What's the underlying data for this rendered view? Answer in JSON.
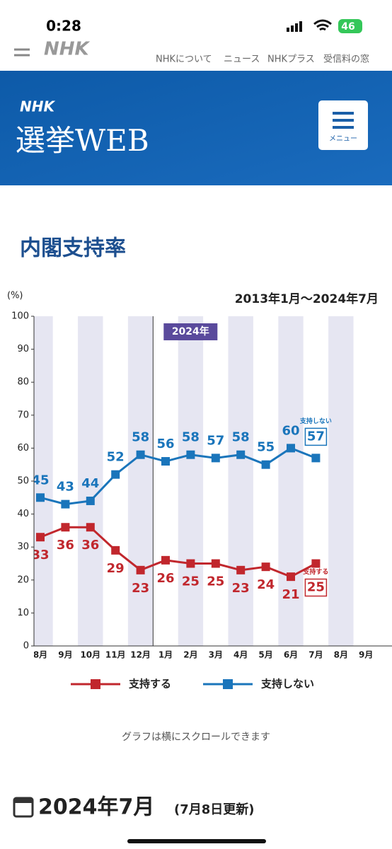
{
  "status_bar": {
    "time": "0:28",
    "battery": "46"
  },
  "nav": {
    "logo": "NHK",
    "links": [
      "NHKについて",
      "ニュース",
      "NHKプラス",
      "受信料の窓"
    ]
  },
  "header": {
    "brand": "NHK",
    "title": "選挙WEB",
    "menu": "メニュー"
  },
  "section": {
    "title": "内閣支持率"
  },
  "chart_data": {
    "type": "line",
    "y_label": "(%)",
    "period": "2013年1月～2024年7月",
    "annotation": "2024年",
    "categories": [
      "8月",
      "9月",
      "10月",
      "11月",
      "12月",
      "1月",
      "2月",
      "3月",
      "4月",
      "5月",
      "6月",
      "7月",
      "8月",
      "9月"
    ],
    "series": [
      {
        "name": "支持する",
        "color": "#c1272d",
        "values": [
          33,
          36,
          36,
          29,
          23,
          26,
          25,
          25,
          23,
          24,
          21,
          25,
          null,
          null
        ]
      },
      {
        "name": "支持しない",
        "color": "#1a75bb",
        "values": [
          45,
          43,
          44,
          52,
          58,
          56,
          58,
          57,
          58,
          55,
          60,
          57,
          null,
          null
        ]
      }
    ],
    "ylim": [
      0,
      100
    ],
    "yticks": [
      0,
      10,
      20,
      30,
      40,
      50,
      60,
      70,
      80,
      90,
      100
    ],
    "grid": false,
    "legend": "bottom"
  },
  "footer": {
    "note": "グラフは横にスクロールできます",
    "date": "2024年7月",
    "updated": "(7月8日更新)"
  }
}
